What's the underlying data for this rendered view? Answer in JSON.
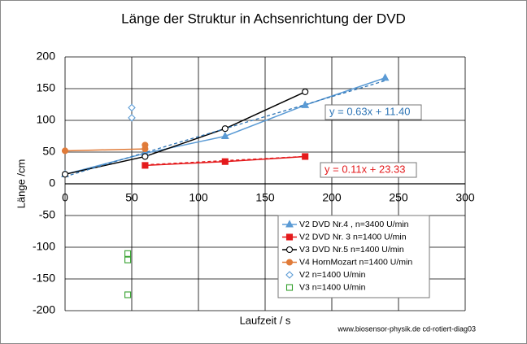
{
  "chart_data": {
    "type": "scatter",
    "title": "Länge der Struktur in Achsenrichtung der DVD",
    "x_label": "Laufzeit / s",
    "y_label": "Länge /cm",
    "xlim": [
      0,
      300
    ],
    "xticks": [
      0,
      50,
      100,
      150,
      200,
      250,
      300
    ],
    "ylim": [
      -200,
      200
    ],
    "yticks": [
      -200,
      -150,
      -100,
      -50,
      0,
      50,
      100,
      150,
      200
    ],
    "grid": true,
    "legend": "lower right",
    "series": [
      {
        "name": "V2 DVD Nr.4 , n=3400 U/min",
        "color": "#5b9bd5",
        "marker": "triangle",
        "line": true,
        "x": [
          0,
          60,
          120,
          180,
          240
        ],
        "values": [
          15,
          48,
          75,
          124,
          167
        ]
      },
      {
        "name": "V2 DVD Nr. 3  n=1400 U/min",
        "color": "#e41a1c",
        "marker": "square",
        "line": true,
        "x": [
          60,
          120,
          180
        ],
        "values": [
          29,
          35,
          43
        ]
      },
      {
        "name": "V3 DVD Nr.5  n=1400 U/min",
        "color": "#000000",
        "marker": "circle-open",
        "line": true,
        "x": [
          0,
          60,
          120,
          180
        ],
        "values": [
          15,
          43,
          87,
          145
        ]
      },
      {
        "name": "V4 HornMozart n=1400 U/min",
        "color": "#e07b39",
        "marker": "circle",
        "line": true,
        "x": [
          0,
          60,
          60
        ],
        "values": [
          52,
          55,
          61
        ]
      },
      {
        "name": "V2 n=1400 U/min",
        "color": "#5b9bd5",
        "marker": "diamond-open",
        "line": false,
        "x": [
          50,
          50
        ],
        "values": [
          120,
          104
        ]
      },
      {
        "name": "V3 n=1400 U/min",
        "color": "#33a02c",
        "marker": "square-open",
        "line": false,
        "x": [
          47,
          47,
          47
        ],
        "values": [
          -110,
          -120,
          -175
        ]
      }
    ],
    "trendlines": [
      {
        "series": 0,
        "text": "y = 0.63x + 11.40",
        "slope": 0.63,
        "intercept": 11.4,
        "color": "#2e75b6"
      },
      {
        "series": 1,
        "text": "y = 0.11x + 23.33",
        "slope": 0.11,
        "intercept": 23.33,
        "color": "#e41a1c"
      }
    ],
    "footer": "www.biosensor-physik.de  cd-rotiert-diag03"
  }
}
